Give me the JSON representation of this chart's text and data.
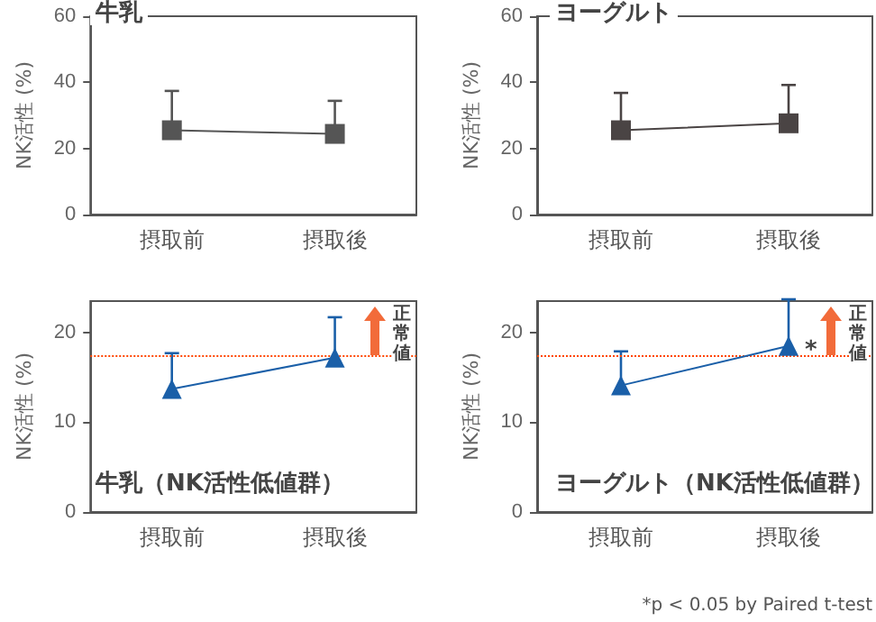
{
  "chart_data": [
    {
      "type": "line",
      "title": "牛乳",
      "ylabel": "NK活性 (%)",
      "categories": [
        "摂取前",
        "摂取後"
      ],
      "ylim": [
        0,
        60
      ],
      "yticks": [
        0,
        20,
        40,
        60
      ],
      "grid": false,
      "marker": "square",
      "line_style": "solid",
      "series": [
        {
          "color": "#555555",
          "values": [
            25.5,
            24.4
          ],
          "errors": [
            [
              25.5,
              37.4
            ],
            [
              24.4,
              34.4
            ]
          ]
        }
      ]
    },
    {
      "type": "line",
      "title": "ヨーグルト",
      "ylabel": "NK活性 (%)",
      "categories": [
        "摂取前",
        "摂取後"
      ],
      "ylim": [
        0,
        60
      ],
      "yticks": [
        0,
        20,
        40,
        60
      ],
      "grid": false,
      "marker": "square",
      "line_style": "solid",
      "series": [
        {
          "color": "#4a4444",
          "values": [
            25.5,
            27.6
          ],
          "errors": [
            [
              25.5,
              36.8
            ],
            [
              27.6,
              39.2
            ]
          ]
        }
      ]
    },
    {
      "type": "line",
      "title": "牛乳（NK活性低値群）",
      "ylabel": "NK活性 (%)",
      "categories": [
        "摂取前",
        "摂取後"
      ],
      "ylim": [
        0,
        23.5
      ],
      "yticks": [
        0,
        10,
        20
      ],
      "grid": false,
      "marker": "triangle",
      "line_style": "solid",
      "ref_lines": [
        {
          "axis": "y",
          "value": 17.4,
          "label": "正常値",
          "color": "#ff4500",
          "line_style": "dotted"
        }
      ],
      "series": [
        {
          "color": "#1a5fa8",
          "values": [
            13.7,
            17.2
          ],
          "errors": [
            [
              13.7,
              17.7
            ],
            [
              17.2,
              21.7
            ]
          ]
        }
      ]
    },
    {
      "type": "line",
      "title": "ヨーグルト（NK活性低値群）",
      "ylabel": "NK活性 (%)",
      "categories": [
        "摂取前",
        "摂取後"
      ],
      "ylim": [
        0,
        23.5
      ],
      "yticks": [
        0,
        10,
        20
      ],
      "grid": false,
      "marker": "triangle",
      "line_style": "solid",
      "ref_lines": [
        {
          "axis": "y",
          "value": 17.4,
          "label": "正常値",
          "color": "#ff4500",
          "line_style": "dotted"
        }
      ],
      "annotations": [
        {
          "text": "*",
          "x": "摂取後",
          "y": 18.5
        },
        "*p < 0.05 by Paired t-test"
      ],
      "series": [
        {
          "color": "#1a5fa8",
          "values": [
            14.1,
            18.5
          ],
          "errors": [
            [
              14.1,
              17.9
            ],
            [
              18.5,
              23.7
            ]
          ]
        }
      ]
    }
  ]
}
